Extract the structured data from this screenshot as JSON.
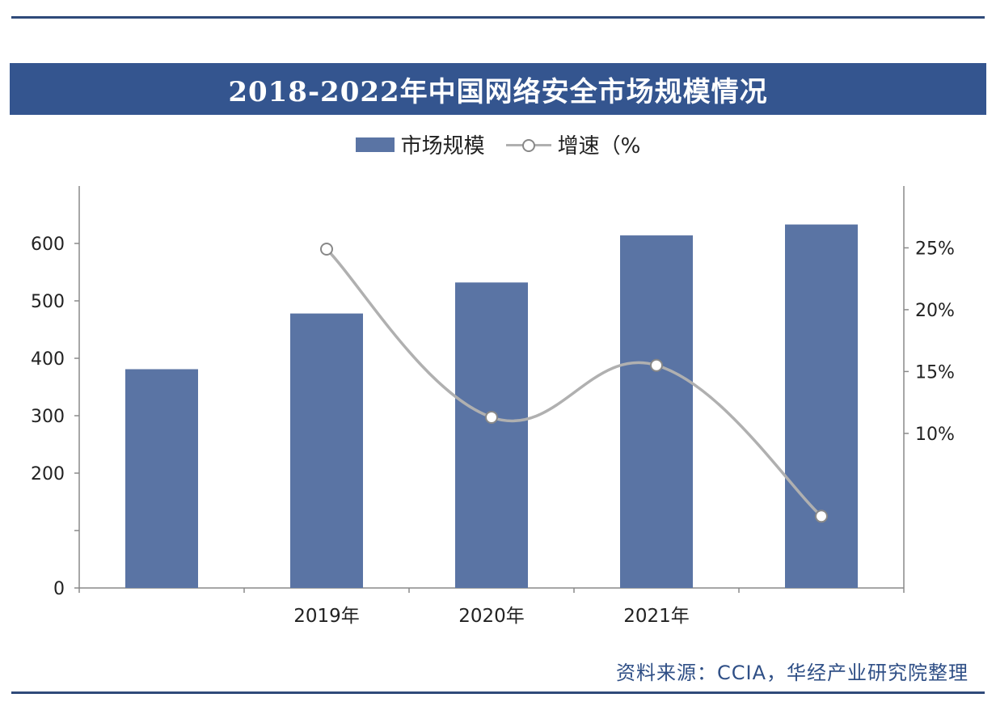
{
  "title": "2018-2022年中国网络安全市场规模情况",
  "legend": {
    "bar_label": "市场规模",
    "line_label": "增速（%"
  },
  "source": "资料来源：CCIA，华经产业研究院整理",
  "colors": {
    "bar": "#5a74a4",
    "line": "#b0b0b0",
    "title_bg": "#34558f",
    "source_text": "#2f4f86"
  },
  "chart_data": {
    "type": "bar",
    "categories": [
      "",
      "2019年",
      "2020年",
      "2021年",
      ""
    ],
    "series": [
      {
        "name": "市场规模",
        "type": "bar",
        "axis": "left",
        "values": [
          381,
          478,
          532,
          614,
          633
        ]
      },
      {
        "name": "增速（%",
        "type": "line",
        "axis": "right",
        "values": [
          null,
          24.9,
          11.3,
          15.5,
          3.3
        ]
      }
    ],
    "y_left": {
      "ylim": [
        0,
        700
      ],
      "ticks": [
        "0",
        "",
        "200",
        "300",
        "400",
        "500",
        "600"
      ]
    },
    "y_right": {
      "ylim": [
        -2.5,
        30
      ],
      "ticks": [
        "10%",
        "15%",
        "20%",
        "25%"
      ]
    },
    "grid": false,
    "legend_position": "top-center"
  }
}
